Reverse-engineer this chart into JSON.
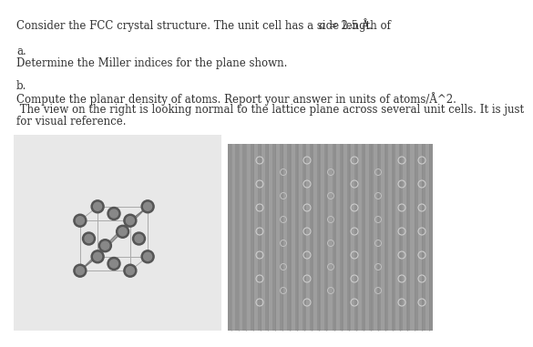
{
  "line1": "Consider the FCC crystal structure. The unit cell has a side length of α = 2.5 Å.",
  "line1_prefix": "Consider the FCC crystal structure. The unit cell has a side length of ",
  "line1_italic": "a",
  "line1_suffix": " = 2.5 Å.",
  "section_a_label": "a.",
  "section_a_text": "Determine the Miller indices for the plane shown.",
  "section_b_label": "b.",
  "section_b_text1": "Compute the planar density of atoms. Report your answer in units of atoms/Å^2.",
  "section_b_text2": " The view on the right is looking normal to the lattice plane across several unit cells. It is just",
  "section_b_text3": "for visual reference.",
  "bg_color": "#ffffff",
  "text_color": "#333333",
  "font_size": 8.5,
  "left_bg": "#e0e0e0",
  "right_bg": "#aaaaaa",
  "atom_dark": "#666666",
  "atom_light": "#999999",
  "edge_color": "#aaaaaa",
  "plane_color": "#808080",
  "stripe_color": "#bbbbbb"
}
